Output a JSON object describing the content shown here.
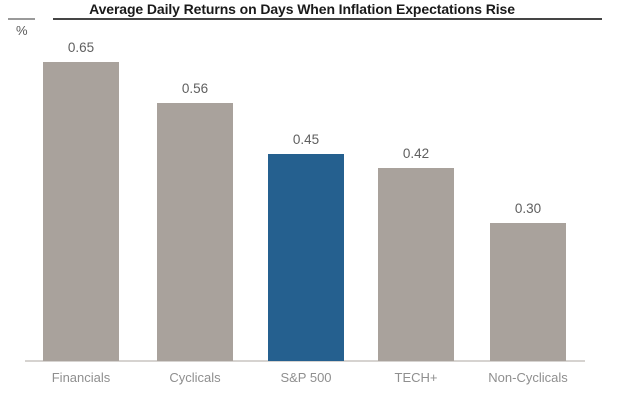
{
  "chart_data": {
    "type": "bar",
    "title": "Average Daily Returns on Days When Inflation Expectations Rise",
    "unit_label": "%",
    "categories": [
      "Financials",
      "Cyclicals",
      "S&P 500",
      "TECH+",
      "Non-Cyclicals"
    ],
    "values": [
      0.65,
      0.56,
      0.45,
      0.42,
      0.3
    ],
    "value_labels": [
      "0.65",
      "0.56",
      "0.45",
      "0.42",
      "0.30"
    ],
    "highlight_index": 2,
    "highlight_category": "S&P 500",
    "data_labels": true,
    "grid": false,
    "legend": "none",
    "ylim": [
      0,
      0.7
    ],
    "colors": {
      "bar": "#a9a29c",
      "highlight": "#25608f",
      "axis_line": "#d6d3d0",
      "title_rule": "#454545",
      "value_label": "#5f5f5f",
      "category_label": "#8f8f8f",
      "title_text": "#1a1a1a",
      "background": "#ffffff"
    }
  }
}
